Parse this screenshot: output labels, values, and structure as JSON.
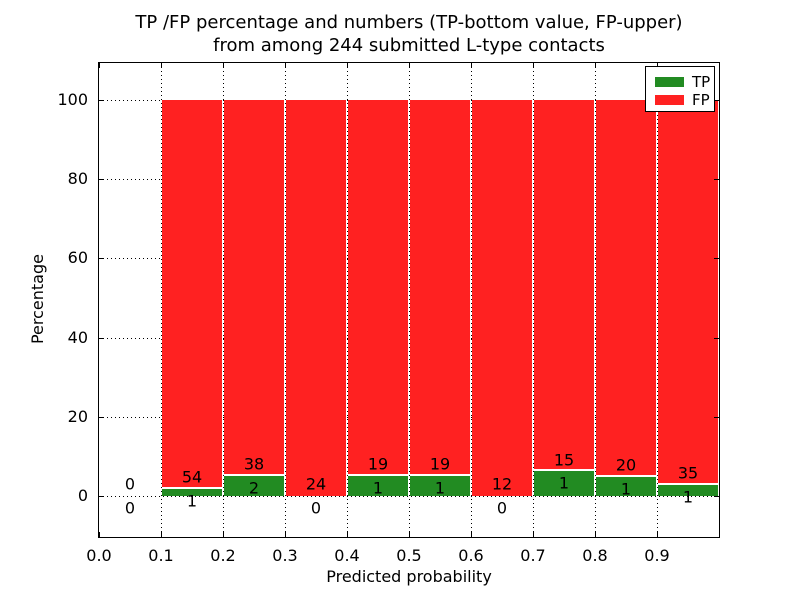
{
  "figure": {
    "title_line1": "TP /FP percentage and numbers (TP-bottom value, FP-upper)",
    "title_line2": "from among 244 submitted L-type contacts"
  },
  "axes": {
    "xlabel": "Predicted probability",
    "ylabel": "Percentage",
    "xticks": [
      {
        "pos": 0.0,
        "label": "0.0"
      },
      {
        "pos": 0.1,
        "label": "0.1"
      },
      {
        "pos": 0.2,
        "label": "0.2"
      },
      {
        "pos": 0.3,
        "label": "0.3"
      },
      {
        "pos": 0.4,
        "label": "0.4"
      },
      {
        "pos": 0.5,
        "label": "0.5"
      },
      {
        "pos": 0.6,
        "label": "0.6"
      },
      {
        "pos": 0.7,
        "label": "0.7"
      },
      {
        "pos": 0.8,
        "label": "0.8"
      },
      {
        "pos": 0.9,
        "label": "0.9"
      },
      {
        "pos": 1.0,
        "label": ""
      }
    ],
    "yticks": [
      {
        "pos": 0,
        "label": "0"
      },
      {
        "pos": 20,
        "label": "20"
      },
      {
        "pos": 40,
        "label": "40"
      },
      {
        "pos": 60,
        "label": "60"
      },
      {
        "pos": 80,
        "label": "80"
      },
      {
        "pos": 100,
        "label": "100"
      }
    ]
  },
  "legend": {
    "entries": [
      {
        "label": "TP",
        "color": "#228b22"
      },
      {
        "label": "FP",
        "color": "#ff2121"
      }
    ]
  },
  "colors": {
    "tp": "#228b22",
    "fp": "#ff2121",
    "grid": "#000000",
    "background": "#ffffff"
  },
  "chart_data": {
    "type": "bar",
    "stacked": true,
    "normalized_to_percent": true,
    "title": "TP /FP percentage and numbers (TP-bottom value, FP-upper) from among 244 submitted L-type contacts",
    "xlabel": "Predicted probability",
    "ylabel": "Percentage",
    "xlim": [
      0.0,
      1.0
    ],
    "ylim": [
      -10.3,
      109.3
    ],
    "grid": "dotted",
    "legend_position": "upper right",
    "total_contacts": 244,
    "label_offset_pct": 3,
    "bins": [
      {
        "range": [
          0.0,
          0.1
        ],
        "tp": 0,
        "fp": 0
      },
      {
        "range": [
          0.1,
          0.2
        ],
        "tp": 1,
        "fp": 54
      },
      {
        "range": [
          0.2,
          0.3
        ],
        "tp": 2,
        "fp": 38
      },
      {
        "range": [
          0.3,
          0.4
        ],
        "tp": 0,
        "fp": 24
      },
      {
        "range": [
          0.4,
          0.5
        ],
        "tp": 1,
        "fp": 19
      },
      {
        "range": [
          0.5,
          0.6
        ],
        "tp": 1,
        "fp": 19
      },
      {
        "range": [
          0.6,
          0.7
        ],
        "tp": 0,
        "fp": 12
      },
      {
        "range": [
          0.7,
          0.8
        ],
        "tp": 1,
        "fp": 15
      },
      {
        "range": [
          0.8,
          0.9
        ],
        "tp": 1,
        "fp": 20
      },
      {
        "range": [
          0.9,
          1.0
        ],
        "tp": 1,
        "fp": 35
      }
    ],
    "series": [
      {
        "name": "TP",
        "values_pct": [
          0,
          1.82,
          5.0,
          0,
          5.0,
          5.0,
          0,
          6.25,
          4.76,
          2.78
        ]
      },
      {
        "name": "FP",
        "values_pct": [
          0,
          98.18,
          95.0,
          100,
          95.0,
          95.0,
          100,
          93.75,
          95.24,
          97.22
        ]
      }
    ]
  }
}
